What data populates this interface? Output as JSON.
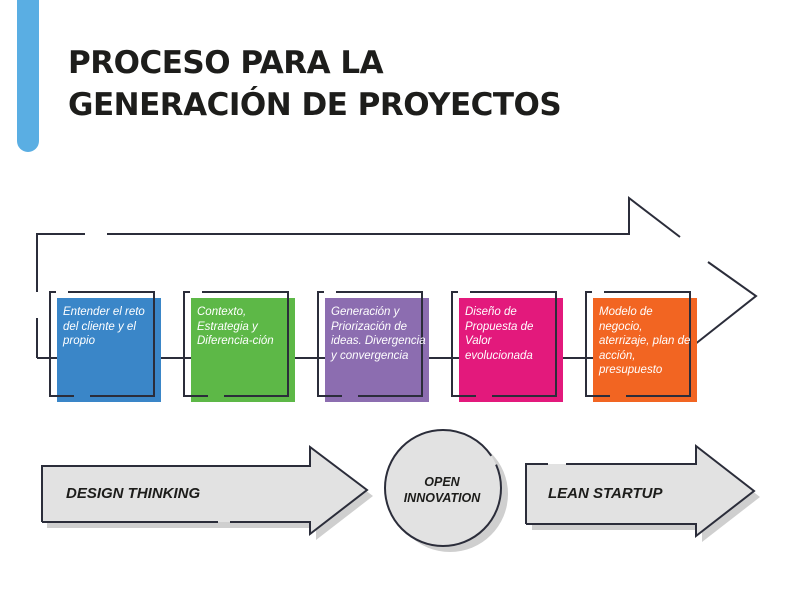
{
  "title": {
    "line1": "PROCESO PARA LA",
    "line2": "GENERACIÓN DE PROYECTOS"
  },
  "steps": [
    {
      "label": "Entender el reto del cliente y el propio",
      "color": "#3a86c8"
    },
    {
      "label": "Contexto, Estrategia y Diferencia-ción",
      "color": "#5db847"
    },
    {
      "label": "Generación y Priorización de ideas. Divergencia y convergencia",
      "color": "#8c6db0"
    },
    {
      "label": "Diseño de Propuesta de Valor evolucionada",
      "color": "#e3197c"
    },
    {
      "label": "Modelo de negocio, aterrizaje, plan de acción, presupuesto",
      "color": "#f26522"
    }
  ],
  "bands": {
    "design_thinking": "DESIGN THINKING",
    "open_innovation_line1": "OPEN",
    "open_innovation_line2": "INNOVATION",
    "lean_startup": "LEAN STARTUP"
  },
  "colors": {
    "accent": "#5aaee3",
    "outline": "#2b2d3a",
    "band_fill": "#e2e2e2",
    "band_shadow": "#cfcfcf"
  }
}
